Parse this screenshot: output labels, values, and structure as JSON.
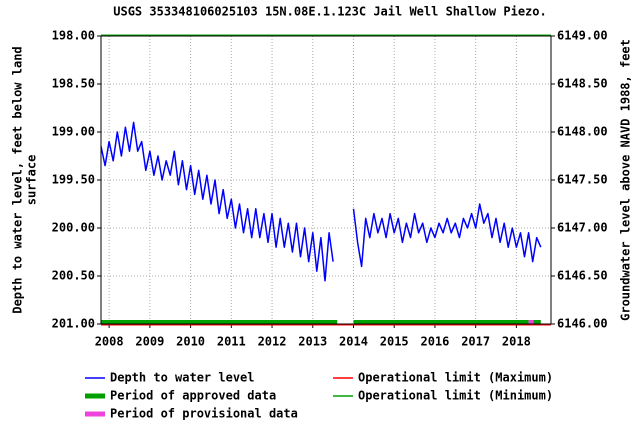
{
  "chart_data": {
    "type": "line",
    "title": "USGS 353348106025103 15N.08E.1.123C  Jail Well Shallow Piezo.",
    "y_label_lines": [
      "Depth to water level, feet below land",
      "surface"
    ],
    "y2_label": "Groundwater level above NAVD 1988, feet",
    "xlim": [
      2007.8,
      2018.85
    ],
    "xticks": [
      2008,
      2009,
      2010,
      2011,
      2012,
      2013,
      2014,
      2015,
      2016,
      2017,
      2018
    ],
    "ylim": [
      198,
      201
    ],
    "y_inverted": true,
    "yticks": [
      {
        "value": 198,
        "label": "198.00"
      },
      {
        "value": 198.5,
        "label": "198.50"
      },
      {
        "value": 199,
        "label": "199.00"
      },
      {
        "value": 199.5,
        "label": "199.50"
      },
      {
        "value": 200,
        "label": "200.00"
      },
      {
        "value": 200.5,
        "label": "200.50"
      },
      {
        "value": 201,
        "label": "201.00"
      }
    ],
    "y2lim": [
      6149,
      6146
    ],
    "y2ticks": [
      {
        "value": 6149,
        "label": "6149.00"
      },
      {
        "value": 6148.5,
        "label": "6148.50"
      },
      {
        "value": 6148,
        "label": "6148.00"
      },
      {
        "value": 6147.5,
        "label": "6147.50"
      },
      {
        "value": 6147,
        "label": "6147.00"
      },
      {
        "value": 6146.5,
        "label": "6146.50"
      },
      {
        "value": 6146,
        "label": "6146.00"
      }
    ],
    "grid": true,
    "series": [
      {
        "name": "Depth to water level",
        "color": "#0000ff",
        "x": [
          2007.8,
          2007.9,
          2008,
          2008.1,
          2008.2,
          2008.3,
          2008.4,
          2008.5,
          2008.6,
          2008.7,
          2008.8,
          2008.9,
          2009,
          2009.1,
          2009.2,
          2009.3,
          2009.4,
          2009.5,
          2009.6,
          2009.7,
          2009.8,
          2009.9,
          2010,
          2010.1,
          2010.2,
          2010.3,
          2010.4,
          2010.5,
          2010.6,
          2010.7,
          2010.8,
          2010.9,
          2011,
          2011.1,
          2011.2,
          2011.3,
          2011.4,
          2011.5,
          2011.6,
          2011.7,
          2011.8,
          2011.9,
          2012,
          2012.1,
          2012.2,
          2012.3,
          2012.4,
          2012.5,
          2012.6,
          2012.7,
          2012.8,
          2012.9,
          2013,
          2013.1,
          2013.2,
          2013.3,
          2013.4,
          2013.5,
          2013.6,
          2013.7,
          2013.8,
          2013.9,
          2014,
          2014.1,
          2014.2,
          2014.3,
          2014.4,
          2014.5,
          2014.6,
          2014.7,
          2014.8,
          2014.9,
          2015,
          2015.1,
          2015.2,
          2015.3,
          2015.4,
          2015.5,
          2015.6,
          2015.7,
          2015.8,
          2015.9,
          2016,
          2016.1,
          2016.2,
          2016.3,
          2016.4,
          2016.5,
          2016.6,
          2016.7,
          2016.8,
          2016.9,
          2017,
          2017.1,
          2017.2,
          2017.3,
          2017.4,
          2017.5,
          2017.6,
          2017.7,
          2017.8,
          2017.9,
          2018,
          2018.1,
          2018.2,
          2018.3,
          2018.4,
          2018.5,
          2018.6
        ],
        "values": [
          199.15,
          199.35,
          199.1,
          199.3,
          199.0,
          199.25,
          198.95,
          199.2,
          198.9,
          199.2,
          199.1,
          199.4,
          199.2,
          199.45,
          199.25,
          199.5,
          199.3,
          199.45,
          199.2,
          199.55,
          199.3,
          199.6,
          199.35,
          199.65,
          199.4,
          199.7,
          199.45,
          199.75,
          199.5,
          199.85,
          199.6,
          199.9,
          199.7,
          200.0,
          199.75,
          200.05,
          199.8,
          200.1,
          199.8,
          200.1,
          199.85,
          200.15,
          199.85,
          200.2,
          199.9,
          200.2,
          199.95,
          200.25,
          199.95,
          200.3,
          200.0,
          200.35,
          200.05,
          200.45,
          200.1,
          200.55,
          200.05,
          200.35,
          null,
          null,
          null,
          null,
          199.8,
          200.15,
          200.4,
          199.9,
          200.1,
          199.85,
          200.05,
          199.9,
          200.1,
          199.85,
          200.05,
          199.9,
          200.15,
          199.95,
          200.1,
          199.85,
          200.05,
          199.95,
          200.15,
          200.0,
          200.1,
          199.95,
          200.05,
          199.9,
          200.05,
          199.95,
          200.1,
          199.9,
          200.0,
          199.85,
          200.0,
          199.75,
          199.95,
          199.85,
          200.1,
          199.9,
          200.15,
          199.95,
          200.2,
          200.0,
          200.2,
          200.05,
          200.3,
          200.05,
          200.35,
          200.1,
          200.2
        ]
      }
    ],
    "periods": [
      {
        "name": "Period of approved data",
        "color": "#00a000",
        "ranges": [
          [
            2007.8,
            2013.6
          ],
          [
            2014.0,
            2018.3
          ],
          [
            2018.42,
            2018.6
          ]
        ]
      },
      {
        "name": "Period of provisional data",
        "color": "#ee44dd",
        "ranges": [
          [
            2018.3,
            2018.42
          ]
        ]
      }
    ],
    "limits": [
      {
        "name": "Operational limit (Maximum)",
        "color": "#ff0000",
        "value": 201
      },
      {
        "name": "Operational limit (Minimum)",
        "color": "#00a000",
        "value": 198
      }
    ]
  }
}
